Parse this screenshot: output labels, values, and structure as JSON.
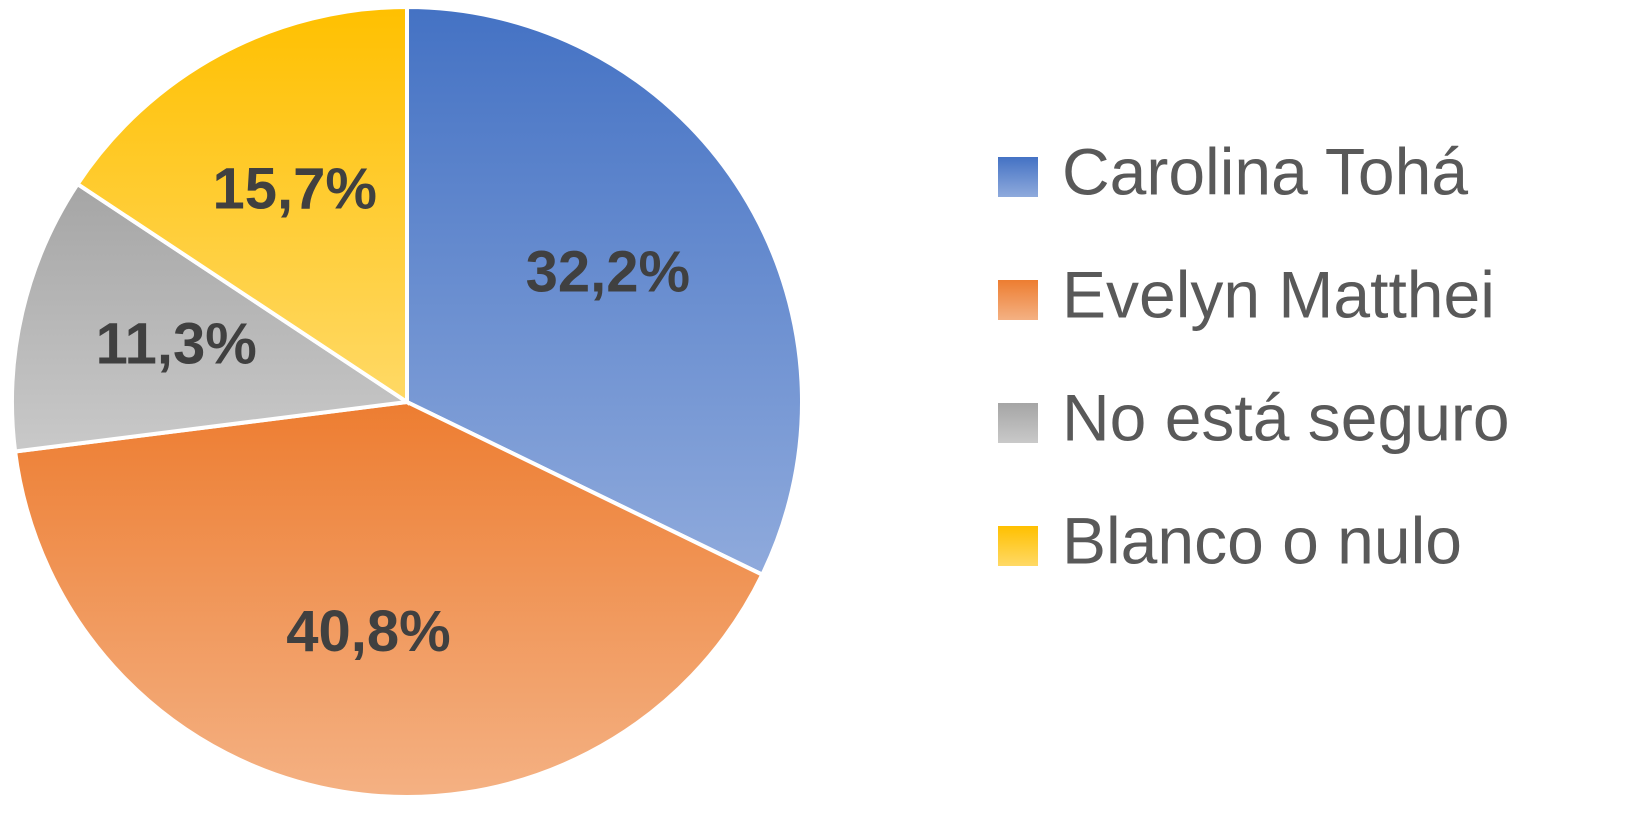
{
  "chart_data": {
    "type": "pie",
    "categories": [
      "Carolina Tohá",
      "Evelyn Matthei",
      "No está seguro",
      "Blanco o nulo"
    ],
    "values": [
      32.2,
      40.8,
      11.3,
      15.7
    ],
    "value_labels": [
      "32,2%",
      "40,8%",
      "11,3%",
      "15,7%"
    ],
    "colors": [
      "#4472c4",
      "#ed7d31",
      "#a5a5a5",
      "#ffc000"
    ],
    "legend": "right"
  }
}
